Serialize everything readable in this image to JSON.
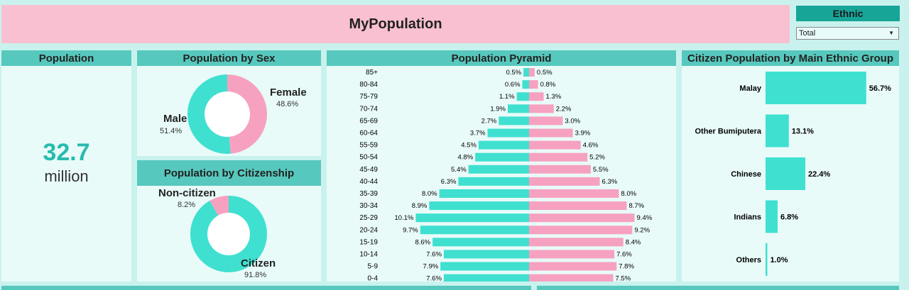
{
  "header": {
    "title": "MyPopulation"
  },
  "filter": {
    "label": "Ethnic",
    "selected": "Total"
  },
  "population": {
    "title": "Population",
    "value": "32.7",
    "unit": "million"
  },
  "sex": {
    "title": "Population by Sex",
    "male": {
      "label": "Male",
      "pct": "51.4%",
      "value": 51.4
    },
    "female": {
      "label": "Female",
      "pct": "48.6%",
      "value": 48.6
    }
  },
  "citizenship": {
    "title": "Population by Citizenship",
    "noncitizen": {
      "label": "Non-citizen",
      "pct": "8.2%",
      "value": 8.2
    },
    "citizen": {
      "label": "Citizen",
      "pct": "91.8%",
      "value": 91.8
    }
  },
  "pyramid": {
    "title": "Population Pyramid"
  },
  "ethnic_chart": {
    "title": "Citizen Population by Main Ethnic Group"
  },
  "colors": {
    "teal": "#3fe0d0",
    "pink": "#f7a1c0",
    "header": "#57c8bd",
    "panel": "#e8fbf9"
  },
  "chart_data": [
    {
      "type": "pie",
      "title": "Population by Sex",
      "categories": [
        "Male",
        "Female"
      ],
      "values": [
        51.4,
        48.6
      ]
    },
    {
      "type": "pie",
      "title": "Population by Citizenship",
      "categories": [
        "Citizen",
        "Non-citizen"
      ],
      "values": [
        91.8,
        8.2
      ]
    },
    {
      "type": "bar",
      "title": "Population Pyramid",
      "categories": [
        "85+",
        "80-84",
        "75-79",
        "70-74",
        "65-69",
        "60-64",
        "55-59",
        "50-54",
        "45-49",
        "40-44",
        "35-39",
        "30-34",
        "25-29",
        "20-24",
        "15-19",
        "10-14",
        "5-9",
        "0-4"
      ],
      "series": [
        {
          "name": "Male",
          "values": [
            0.5,
            0.6,
            1.1,
            1.9,
            2.7,
            3.7,
            4.5,
            4.8,
            5.4,
            6.3,
            8.0,
            8.9,
            10.1,
            9.7,
            8.6,
            7.6,
            7.9,
            7.6
          ],
          "labels": [
            "0.5%",
            "0.6%",
            "1.1%",
            "1.9%",
            "2.7%",
            "3.7%",
            "4.5%",
            "4.8%",
            "5.4%",
            "6.3%",
            "8.0%",
            "8.9%",
            "10.1%",
            "9.7%",
            "8.6%",
            "7.6%",
            "7.9%",
            "7.6%"
          ]
        },
        {
          "name": "Female",
          "values": [
            0.5,
            0.8,
            1.3,
            2.2,
            3.0,
            3.9,
            4.6,
            5.2,
            5.5,
            6.3,
            8.0,
            8.7,
            9.4,
            9.2,
            8.4,
            7.6,
            7.8,
            7.5
          ],
          "labels": [
            "0.5%",
            "0.8%",
            "1.3%",
            "2.2%",
            "3.0%",
            "3.9%",
            "4.6%",
            "5.2%",
            "5.5%",
            "6.3%",
            "8.0%",
            "8.7%",
            "9.4%",
            "9.2%",
            "8.4%",
            "7.6%",
            "7.8%",
            "7.5%"
          ]
        }
      ]
    },
    {
      "type": "bar",
      "title": "Citizen Population by Main Ethnic Group",
      "categories": [
        "Malay",
        "Other Bumiputera",
        "Chinese",
        "Indians",
        "Others"
      ],
      "values": [
        56.7,
        13.1,
        22.4,
        6.8,
        1.0
      ],
      "labels": [
        "56.7%",
        "13.1%",
        "22.4%",
        "6.8%",
        "1.0%"
      ]
    }
  ]
}
